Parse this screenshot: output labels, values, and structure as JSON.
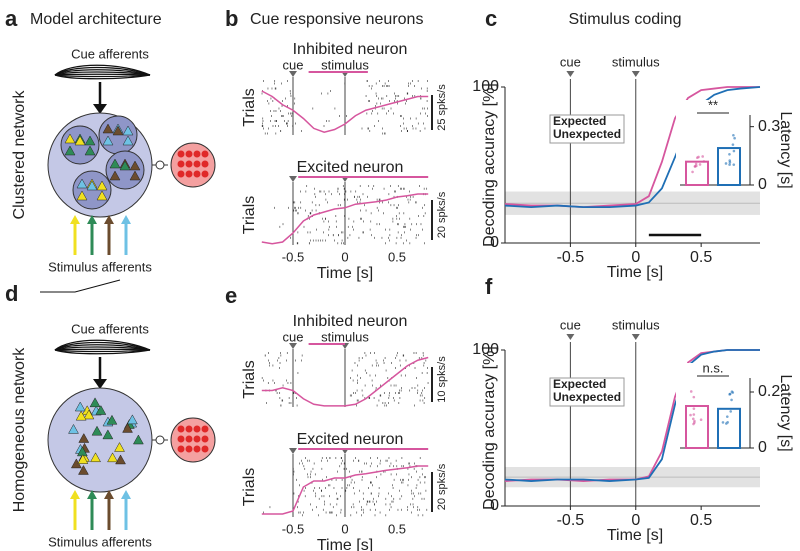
{
  "figure": {
    "a": {
      "letter": "a",
      "title": "Model architecture",
      "row_label": "Clustered network",
      "cue_label": "Cue afferents",
      "stim_label": "Stimulus afferents"
    },
    "d": {
      "letter": "d",
      "row_label": "Homogeneous network",
      "cue_label": "Cue afferents",
      "stim_label": "Stimulus afferents"
    },
    "b": {
      "letter": "b",
      "title": "Cue responsive neurons",
      "inhibited": "Inhibited neuron",
      "excited": "Excited neuron",
      "cue": "cue",
      "stimulus": "stimulus",
      "ylabel": "Trials",
      "scale_top": "25 spks/s",
      "scale_bottom": "20 spks/s",
      "xlabel": "Time [s]",
      "xticks": [
        -0.5,
        0,
        0.5
      ]
    },
    "e": {
      "letter": "e",
      "inhibited": "Inhibited neuron",
      "excited": "Excited neuron",
      "cue": "cue",
      "stimulus": "stimulus",
      "ylabel": "Trials",
      "scale_top": "10 spks/s",
      "scale_bottom": "20 spks/s",
      "xlabel": "Time [s]",
      "xticks": [
        -0.5,
        0,
        0.5
      ]
    }
  },
  "chart_data": [
    {
      "type": "line",
      "letter": "c",
      "title": "Stimulus coding",
      "cue": "cue",
      "stimulus": "stimulus",
      "xlabel": "Time [s]",
      "ylabel": "Decoding accuracy [%]",
      "x": [
        -1,
        -0.8,
        -0.6,
        -0.4,
        -0.2,
        0,
        0.1,
        0.2,
        0.3,
        0.4,
        0.5,
        0.6,
        0.7,
        0.8,
        0.95
      ],
      "series": [
        {
          "name": "Expected",
          "color": "#d6569e",
          "values": [
            25,
            24,
            24,
            23,
            24,
            25,
            30,
            52,
            80,
            93,
            98,
            99,
            100,
            100,
            100
          ]
        },
        {
          "name": "Unexpected",
          "color": "#1f6fb5",
          "values": [
            24,
            23,
            24,
            23,
            23,
            24,
            26,
            35,
            55,
            76,
            89,
            95,
            98,
            99,
            100
          ]
        }
      ],
      "xlim": [
        -1,
        0.95
      ],
      "ylim": [
        0,
        100
      ],
      "xticks": [
        -0.5,
        0,
        0.5
      ],
      "yticks": [
        0,
        100
      ]
    },
    {
      "type": "bar",
      "ylabel": "Latency [s]",
      "annotation": "**",
      "categories": [
        null,
        null
      ],
      "values": [
        0.12,
        0.19
      ],
      "colors": [
        "#d6569e",
        "#1f6fb5"
      ],
      "ylim": [
        0,
        0.36
      ],
      "yticks": [
        0,
        0.3
      ]
    },
    {
      "type": "line",
      "letter": "f",
      "cue": "cue",
      "stimulus": "stimulus",
      "xlabel": "Time [s]",
      "ylabel": "Decoding accuracy [%]",
      "x": [
        -1,
        -0.8,
        -0.6,
        -0.4,
        -0.2,
        0,
        0.1,
        0.2,
        0.3,
        0.4,
        0.5,
        0.6,
        0.7,
        0.8,
        0.95
      ],
      "series": [
        {
          "name": "Expected",
          "color": "#d6569e",
          "values": [
            16,
            17,
            17,
            16,
            17,
            17,
            19,
            35,
            70,
            92,
            98,
            99,
            100,
            100,
            100
          ]
        },
        {
          "name": "Unexpected",
          "color": "#1f6fb5",
          "values": [
            17,
            16,
            17,
            17,
            16,
            17,
            18,
            30,
            65,
            90,
            97,
            99,
            100,
            100,
            100
          ]
        }
      ],
      "xlim": [
        -1,
        0.95
      ],
      "ylim": [
        0,
        100
      ],
      "xticks": [
        -0.5,
        0,
        0.5
      ],
      "yticks": [
        0,
        100
      ]
    },
    {
      "type": "bar",
      "ylabel": "Latency [s]",
      "annotation": "n.s.",
      "categories": [
        null,
        null
      ],
      "values": [
        0.15,
        0.14
      ],
      "colors": [
        "#d6569e",
        "#1f6fb5"
      ],
      "ylim": [
        0,
        0.25
      ],
      "yticks": [
        0,
        0.2
      ]
    }
  ]
}
